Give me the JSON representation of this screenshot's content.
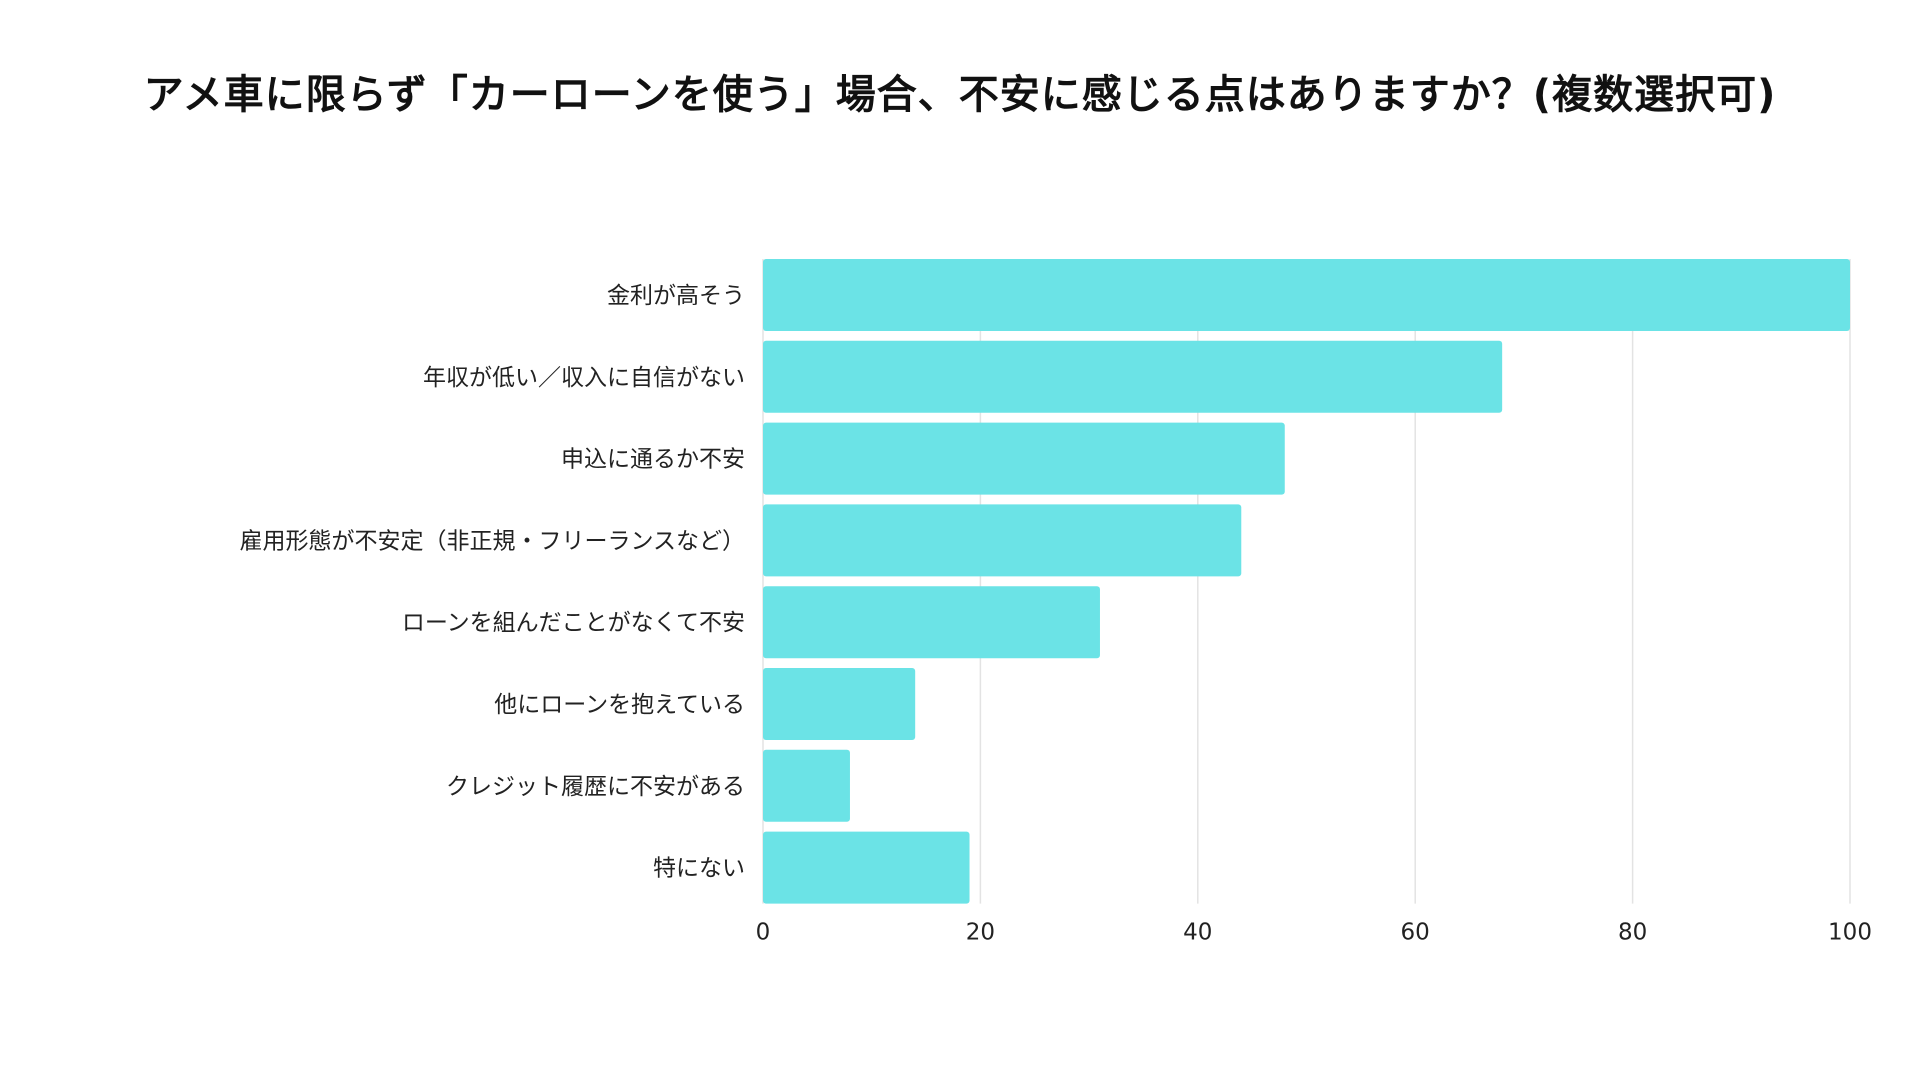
{
  "chart_data": {
    "type": "bar",
    "orientation": "horizontal",
    "title": "アメ車に限らず「カーローンを使う」場合、不安に感じる点はありますか？(複数選択可)",
    "categories": [
      "金利が高そう",
      "年収が低い／収入に自信がない",
      "申込に通るか不安",
      "雇用形態が不安定（非正規・フリーランスなど）",
      "ローンを組んだことがなくて不安",
      "他にローンを抱えている",
      "クレジット履歴に不安がある",
      "特にない"
    ],
    "values": [
      100,
      68,
      48,
      44,
      31,
      14,
      8,
      19
    ],
    "xlim": [
      0,
      100
    ],
    "xticks": [
      0,
      20,
      40,
      60,
      80,
      100
    ],
    "xlabel": "",
    "ylabel": "",
    "grid": true,
    "legend": "none",
    "bar_color": "#6be3e6",
    "grid_color": "#e3e3e3"
  }
}
